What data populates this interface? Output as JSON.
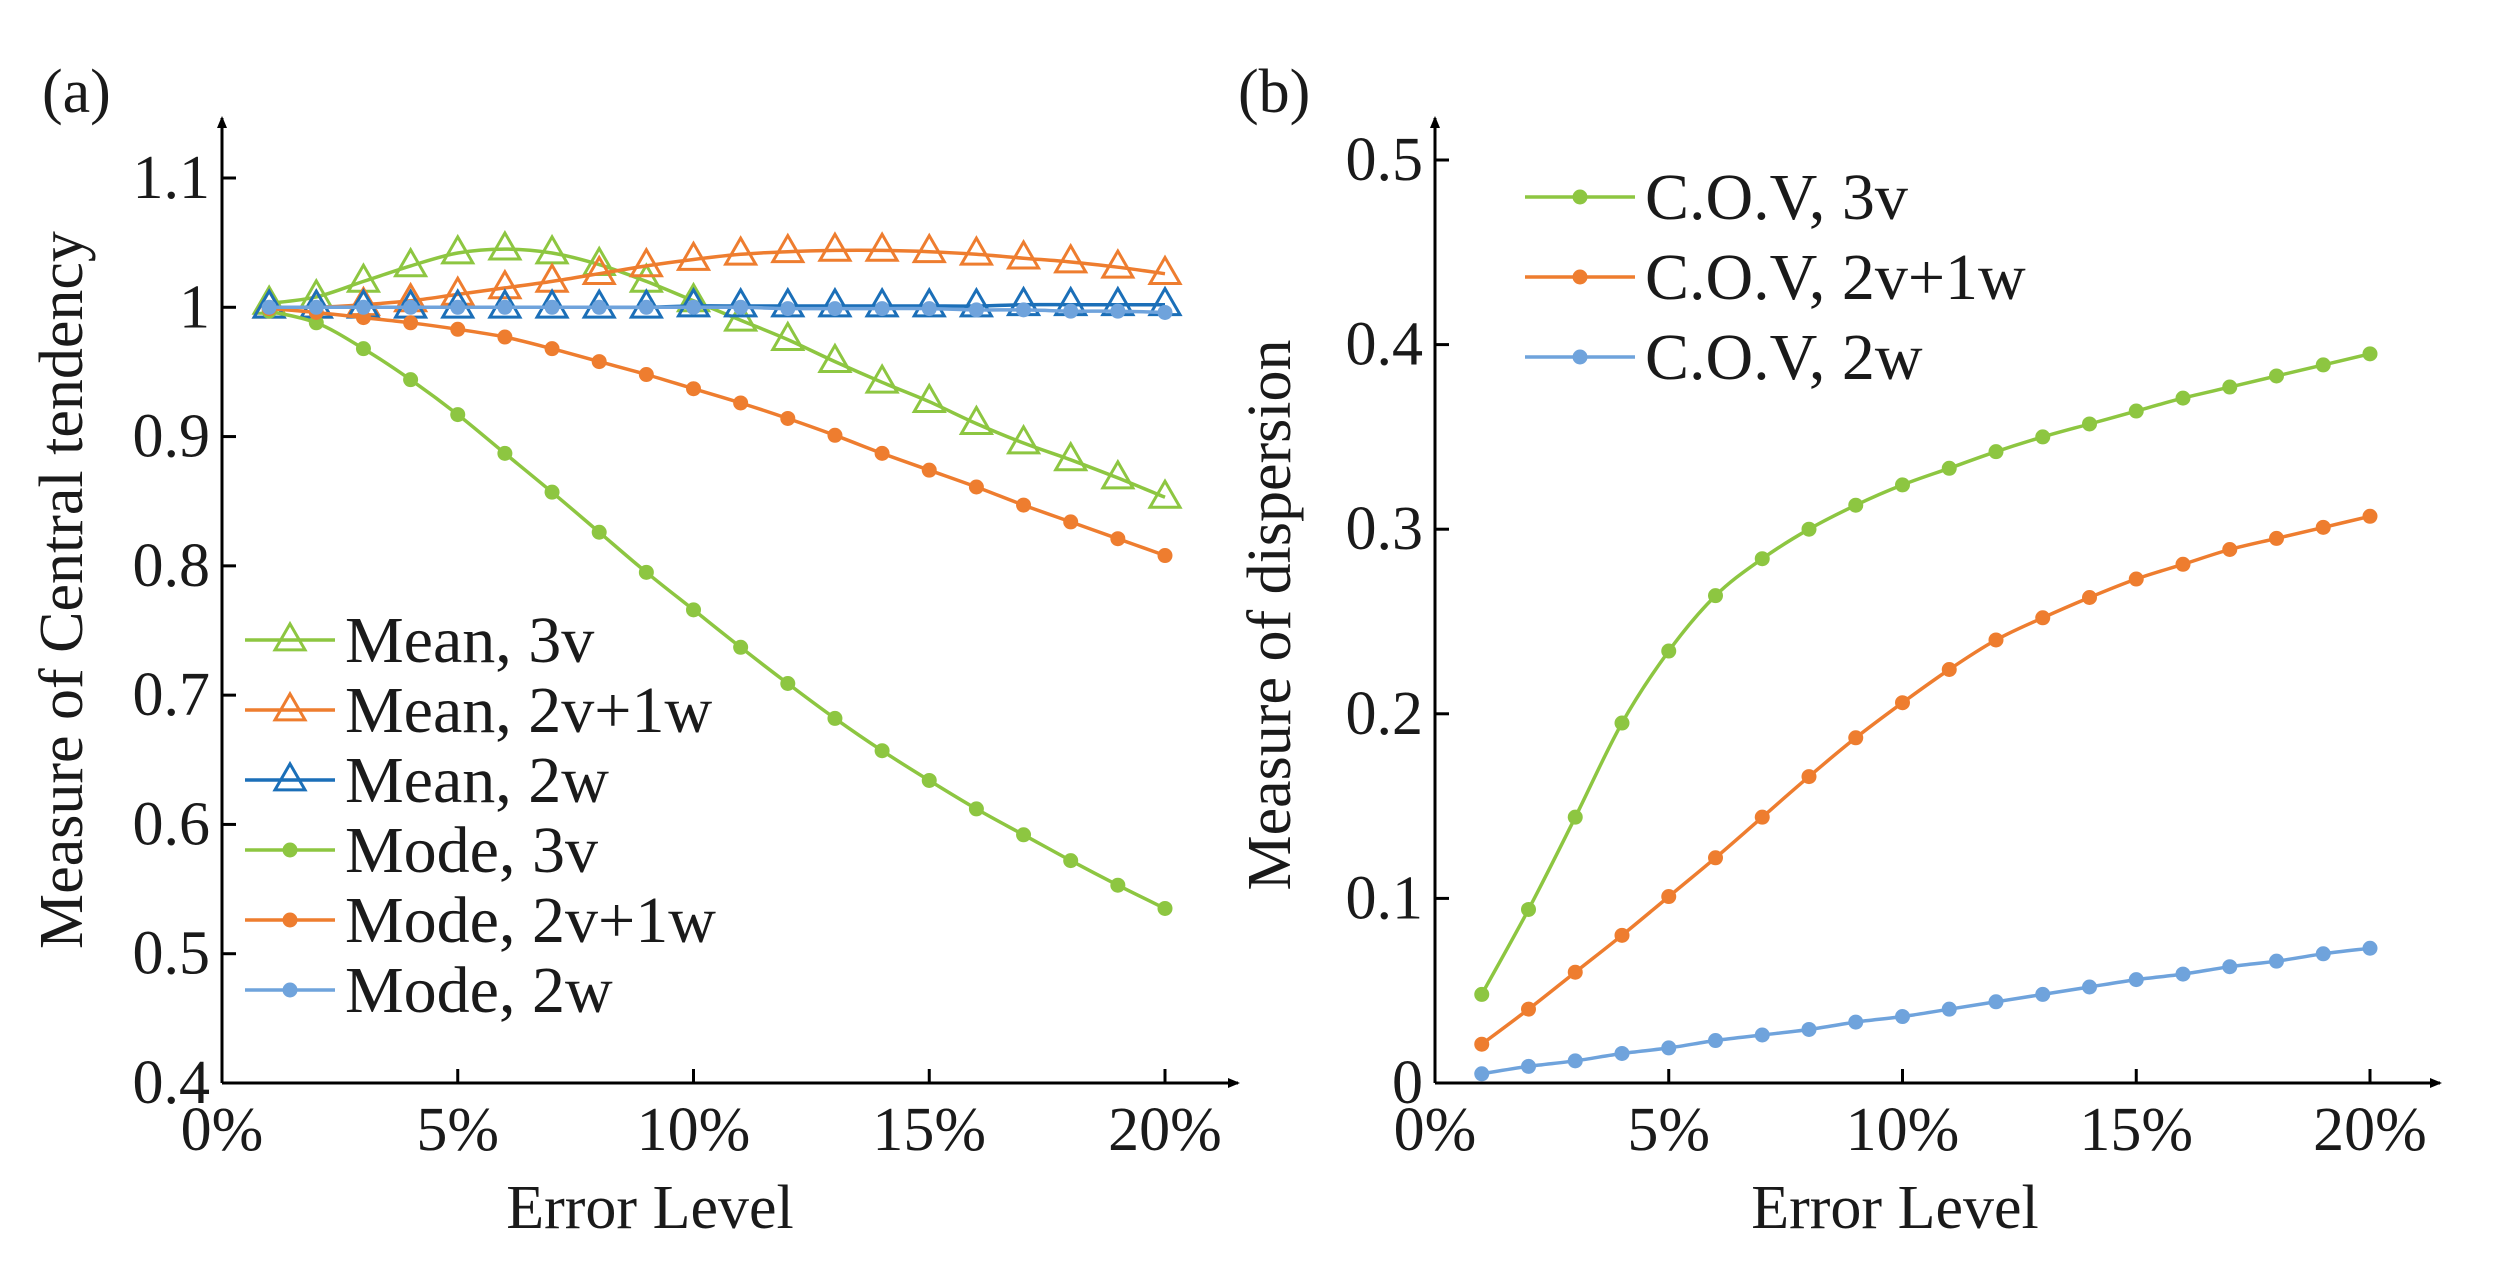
{
  "colors": {
    "green": "#8DC641",
    "orange": "#EE7D2F",
    "blue": "#1B6FB8",
    "lightblue": "#6FA3DC",
    "axis": "#000000"
  },
  "chart_data": [
    {
      "panel_label": "(a)",
      "type": "line",
      "xlabel": "Error Level",
      "ylabel": "Measure of Central tendency",
      "xlim": [
        0,
        20
      ],
      "ylim": [
        0.4,
        1.1
      ],
      "x_ticks": [
        0,
        5,
        10,
        15,
        20
      ],
      "x_tick_labels": [
        "0%",
        "5%",
        "10%",
        "15%",
        "20%"
      ],
      "y_ticks": [
        0.4,
        0.5,
        0.6,
        0.7,
        0.8,
        0.9,
        1.0,
        1.1
      ],
      "y_tick_labels": [
        "0.4",
        "0.5",
        "0.6",
        "0.7",
        "0.8",
        "0.9",
        "1",
        "1.1"
      ],
      "grid": false,
      "legend_position": "bottom-left",
      "x": [
        1,
        2,
        3,
        4,
        5,
        6,
        7,
        8,
        9,
        10,
        11,
        12,
        13,
        14,
        15,
        16,
        17,
        18,
        19,
        20
      ],
      "series": [
        {
          "name": "Mean, 3v",
          "color": "green",
          "marker": "triangle-open",
          "values": [
            1.003,
            1.008,
            1.02,
            1.032,
            1.042,
            1.045,
            1.042,
            1.033,
            1.02,
            1.005,
            0.99,
            0.975,
            0.958,
            0.942,
            0.927,
            0.91,
            0.895,
            0.882,
            0.868,
            0.853
          ]
        },
        {
          "name": "Mean, 2v+1w",
          "color": "orange",
          "marker": "triangle-open",
          "values": [
            1.0,
            1.0,
            1.002,
            1.005,
            1.01,
            1.015,
            1.02,
            1.026,
            1.032,
            1.037,
            1.041,
            1.043,
            1.044,
            1.044,
            1.043,
            1.041,
            1.038,
            1.035,
            1.031,
            1.026
          ]
        },
        {
          "name": "Mean, 2w",
          "color": "blue",
          "marker": "triangle-open",
          "values": [
            1.0,
            1.0,
            1.0,
            1.0,
            1.0,
            1.0,
            1.0,
            1.0,
            1.0,
            1.001,
            1.001,
            1.001,
            1.001,
            1.001,
            1.001,
            1.001,
            1.002,
            1.002,
            1.002,
            1.002
          ]
        },
        {
          "name": "Mode, 3v",
          "color": "green",
          "marker": "dot",
          "values": [
            0.997,
            0.988,
            0.968,
            0.944,
            0.917,
            0.887,
            0.857,
            0.826,
            0.795,
            0.766,
            0.737,
            0.709,
            0.682,
            0.657,
            0.634,
            0.612,
            0.592,
            0.572,
            0.553,
            0.535
          ]
        },
        {
          "name": "Mode, 2v+1w",
          "color": "orange",
          "marker": "dot",
          "values": [
            0.999,
            0.996,
            0.992,
            0.988,
            0.983,
            0.977,
            0.968,
            0.958,
            0.948,
            0.937,
            0.926,
            0.914,
            0.901,
            0.887,
            0.874,
            0.861,
            0.847,
            0.834,
            0.821,
            0.808
          ]
        },
        {
          "name": "Mode, 2w",
          "color": "lightblue",
          "marker": "dot",
          "values": [
            1.0,
            1.0,
            1.0,
            1.0,
            1.0,
            1.0,
            1.0,
            1.0,
            1.0,
            1.0,
            1.0,
            0.999,
            0.999,
            0.999,
            0.999,
            0.998,
            0.998,
            0.997,
            0.997,
            0.996
          ]
        }
      ]
    },
    {
      "panel_label": "(b)",
      "type": "line",
      "xlabel": "Error Level",
      "ylabel": "Measure of dispersion",
      "xlim": [
        0,
        20
      ],
      "ylim": [
        0,
        0.5
      ],
      "x_ticks": [
        0,
        5,
        10,
        15,
        20
      ],
      "x_tick_labels": [
        "0%",
        "5%",
        "10%",
        "15%",
        "20%"
      ],
      "y_ticks": [
        0,
        0.1,
        0.2,
        0.3,
        0.4,
        0.5
      ],
      "y_tick_labels": [
        "0",
        "0.1",
        "0.2",
        "0.3",
        "0.4",
        "0.5"
      ],
      "grid": false,
      "legend_position": "top-left",
      "x": [
        1,
        2,
        3,
        4,
        5,
        6,
        7,
        8,
        9,
        10,
        11,
        12,
        13,
        14,
        15,
        16,
        17,
        18,
        19,
        20
      ],
      "series": [
        {
          "name": "C.O.V, 3v",
          "color": "green",
          "marker": "dot",
          "values": [
            0.048,
            0.094,
            0.144,
            0.195,
            0.234,
            0.264,
            0.284,
            0.3,
            0.313,
            0.324,
            0.333,
            0.342,
            0.35,
            0.357,
            0.364,
            0.371,
            0.377,
            0.383,
            0.389,
            0.395
          ]
        },
        {
          "name": "C.O.V, 2v+1w",
          "color": "orange",
          "marker": "dot",
          "values": [
            0.021,
            0.04,
            0.06,
            0.08,
            0.101,
            0.122,
            0.144,
            0.166,
            0.187,
            0.206,
            0.224,
            0.24,
            0.252,
            0.263,
            0.273,
            0.281,
            0.289,
            0.295,
            0.301,
            0.307
          ]
        },
        {
          "name": "C.O.V, 2w",
          "color": "lightblue",
          "marker": "dot",
          "values": [
            0.005,
            0.009,
            0.012,
            0.016,
            0.019,
            0.023,
            0.026,
            0.029,
            0.033,
            0.036,
            0.04,
            0.044,
            0.048,
            0.052,
            0.056,
            0.059,
            0.063,
            0.066,
            0.07,
            0.073
          ]
        }
      ]
    }
  ]
}
